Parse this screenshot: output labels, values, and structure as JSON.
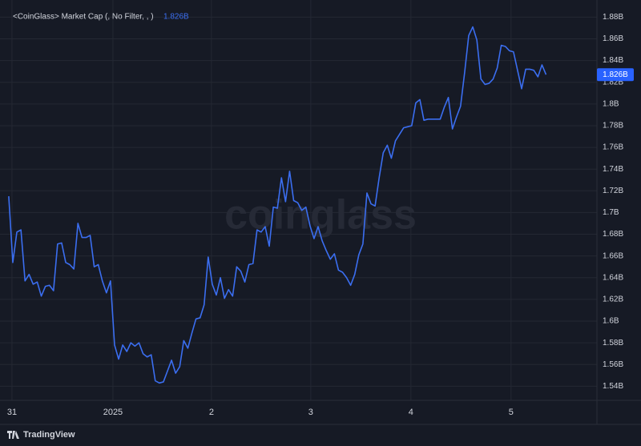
{
  "chart_data": {
    "type": "line",
    "x": [
      0,
      1,
      2,
      3,
      4,
      5,
      6,
      7,
      8,
      9,
      10,
      11,
      12,
      13,
      14,
      15,
      16,
      17,
      18,
      19,
      20,
      21,
      22,
      23,
      24,
      25,
      26,
      27,
      28,
      29,
      30,
      31,
      32,
      33,
      34,
      35,
      36,
      37,
      38,
      39,
      40,
      41,
      42,
      43,
      44,
      45,
      46,
      47,
      48,
      49,
      50,
      51,
      52,
      53,
      54,
      55,
      56,
      57,
      58,
      59,
      60,
      61,
      62,
      63,
      64,
      65,
      66,
      67,
      68,
      69,
      70,
      71,
      72,
      73,
      74,
      75,
      76,
      77,
      78,
      79,
      80,
      81,
      82,
      83,
      84,
      85,
      86,
      87,
      88,
      89,
      90,
      91,
      92,
      93,
      94,
      95,
      96,
      97,
      98,
      99,
      100,
      101,
      102,
      103,
      104,
      105,
      106,
      107,
      108,
      109,
      110,
      111,
      112,
      113,
      114,
      115,
      116,
      117,
      118,
      119,
      120,
      121,
      122,
      123,
      124,
      125,
      126,
      127,
      128,
      129,
      130,
      131,
      132
    ],
    "series": [
      {
        "name": "<CoinGlass> Market Cap (, No Filter, , )",
        "color": "#3b6ef0",
        "values": [
          1.715,
          1.654,
          1.682,
          1.684,
          1.637,
          1.643,
          1.634,
          1.636,
          1.623,
          1.632,
          1.633,
          1.628,
          1.671,
          1.672,
          1.654,
          1.652,
          1.648,
          1.69,
          1.677,
          1.677,
          1.679,
          1.65,
          1.652,
          1.637,
          1.626,
          1.637,
          1.578,
          1.565,
          1.578,
          1.572,
          1.58,
          1.577,
          1.58,
          1.57,
          1.567,
          1.569,
          1.545,
          1.543,
          1.544,
          1.554,
          1.564,
          1.552,
          1.558,
          1.582,
          1.575,
          1.589,
          1.602,
          1.603,
          1.615,
          1.659,
          1.634,
          1.624,
          1.64,
          1.621,
          1.629,
          1.623,
          1.65,
          1.646,
          1.636,
          1.652,
          1.653,
          1.684,
          1.682,
          1.687,
          1.669,
          1.705,
          1.704,
          1.732,
          1.71,
          1.738,
          1.711,
          1.709,
          1.702,
          1.705,
          1.688,
          1.676,
          1.687,
          1.674,
          1.665,
          1.657,
          1.662,
          1.647,
          1.645,
          1.64,
          1.633,
          1.643,
          1.661,
          1.671,
          1.718,
          1.708,
          1.706,
          1.732,
          1.755,
          1.762,
          1.75,
          1.766,
          1.772,
          1.778,
          1.779,
          1.78,
          1.801,
          1.804,
          1.785,
          1.786,
          1.786,
          1.786,
          1.786,
          1.797,
          1.806,
          1.777,
          1.788,
          1.798,
          1.829,
          1.863,
          1.871,
          1.859,
          1.823,
          1.818,
          1.819,
          1.823,
          1.833,
          1.854,
          1.853,
          1.849,
          1.848,
          1.831,
          1.814,
          1.832,
          1.832,
          1.831,
          1.825,
          1.836,
          1.827
        ]
      }
    ],
    "legend_value": "1.826B",
    "last_value_label": "1.826B",
    "watermark": "coinglass",
    "brand": "TradingView",
    "xlim": [
      -0.57,
      144.5
    ],
    "xticks": [
      {
        "value": 0.8,
        "label": "31"
      },
      {
        "value": 25.6,
        "label": "2025"
      },
      {
        "value": 49.8,
        "label": "2"
      },
      {
        "value": 74.2,
        "label": "3"
      },
      {
        "value": 98.8,
        "label": "4"
      },
      {
        "value": 123.4,
        "label": "5"
      }
    ],
    "ylim": [
      1.527,
      1.89
    ],
    "yticks": [
      {
        "value": 1.54,
        "label": "1.54B"
      },
      {
        "value": 1.56,
        "label": "1.56B"
      },
      {
        "value": 1.58,
        "label": "1.58B"
      },
      {
        "value": 1.6,
        "label": "1.6B"
      },
      {
        "value": 1.62,
        "label": "1.62B"
      },
      {
        "value": 1.64,
        "label": "1.64B"
      },
      {
        "value": 1.66,
        "label": "1.66B"
      },
      {
        "value": 1.68,
        "label": "1.68B"
      },
      {
        "value": 1.7,
        "label": "1.7B"
      },
      {
        "value": 1.72,
        "label": "1.72B"
      },
      {
        "value": 1.74,
        "label": "1.74B"
      },
      {
        "value": 1.76,
        "label": "1.76B"
      },
      {
        "value": 1.78,
        "label": "1.78B"
      },
      {
        "value": 1.8,
        "label": "1.8B"
      },
      {
        "value": 1.82,
        "label": "1.82B"
      },
      {
        "value": 1.84,
        "label": "1.84B"
      },
      {
        "value": 1.86,
        "label": "1.86B"
      },
      {
        "value": 1.88,
        "label": "1.88B"
      }
    ],
    "grid": true
  }
}
